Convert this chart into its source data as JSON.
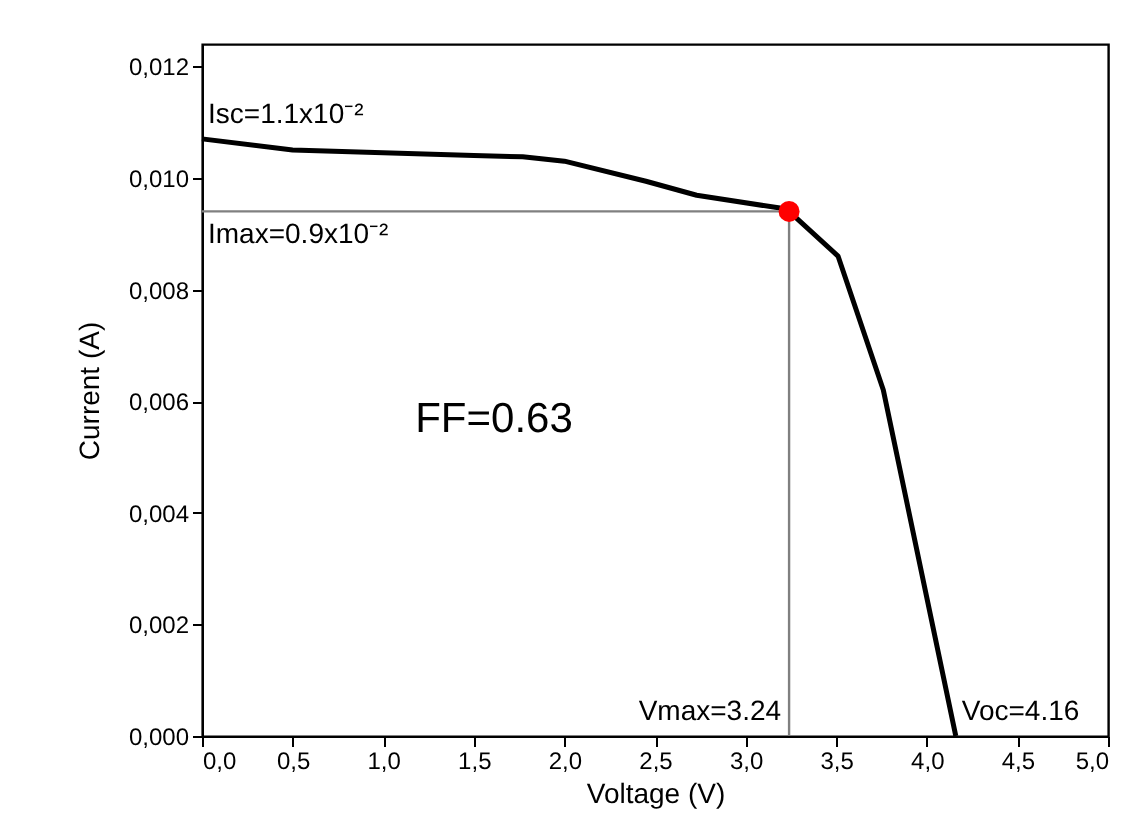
{
  "chart_data": {
    "type": "line",
    "xlabel": "Voltage (V)",
    "ylabel": "Current (A)",
    "xlim": [
      0,
      5
    ],
    "ylim": [
      0,
      0.0124
    ],
    "xticks": [
      {
        "value": 0,
        "label": "0,0"
      },
      {
        "value": 0.5,
        "label": "0,5"
      },
      {
        "value": 1,
        "label": "1,0"
      },
      {
        "value": 1.5,
        "label": "1,5"
      },
      {
        "value": 2,
        "label": "2,0"
      },
      {
        "value": 2.5,
        "label": "2,5"
      },
      {
        "value": 3,
        "label": "3,0"
      },
      {
        "value": 3.5,
        "label": "3,5"
      },
      {
        "value": 4,
        "label": "4,0"
      },
      {
        "value": 4.5,
        "label": "4,5"
      },
      {
        "value": 5,
        "label": "5,0"
      }
    ],
    "yticks": [
      {
        "value": 0,
        "label": "0,000"
      },
      {
        "value": 0.002,
        "label": "0,002"
      },
      {
        "value": 0.004,
        "label": "0,004"
      },
      {
        "value": 0.006,
        "label": "0,006"
      },
      {
        "value": 0.008,
        "label": "0,008"
      },
      {
        "value": 0.01,
        "label": "0,010"
      },
      {
        "value": 0.012,
        "label": "0,012"
      }
    ],
    "grid": false,
    "series": [
      {
        "color": "#000000",
        "x": [
          0,
          0.5,
          1.5,
          1.77,
          2.0,
          2.45,
          2.73,
          3.19,
          3.24,
          3.51,
          3.76,
          4.16
        ],
        "values": [
          0.0107,
          0.0105,
          0.0104,
          0.01038,
          0.0103,
          0.00994,
          0.00969,
          0.00946,
          0.0094,
          0.0086,
          0.0062,
          0
        ]
      },
      {
        "color": "#808080",
        "x": [
          0,
          3.24,
          3.24
        ],
        "values": [
          0.0094,
          0.0094,
          0
        ]
      },
      {
        "type": "scatter",
        "color": "#ff0000",
        "marker": "circle",
        "x": [
          3.24
        ],
        "values": [
          0.0094
        ]
      }
    ],
    "annotations": [
      {
        "text": "Isc=1.1x10⁻²",
        "x": 0,
        "y": 0.0107
      },
      {
        "text": "Imax=0.9x10⁻²",
        "x": 0,
        "y": 0.0094
      },
      {
        "text": "Vmax=3.24",
        "x": 3.24,
        "y": 0
      },
      {
        "text": "Voc=4.16",
        "x": 4.16,
        "y": 0
      },
      "FF=0.63"
    ]
  }
}
